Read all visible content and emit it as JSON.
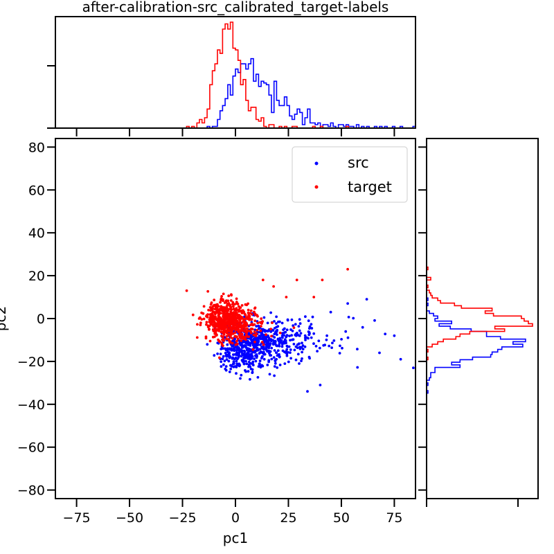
{
  "chart_data": {
    "type": "scatter",
    "title": "after-calibration-src_calibrated_target-labels",
    "xlabel": "pc1",
    "ylabel": "pc2",
    "xlim": [
      -85,
      85
    ],
    "ylim": [
      -84,
      84
    ],
    "xticks": [
      -75,
      -50,
      -25,
      0,
      25,
      50,
      75
    ],
    "yticks": [
      -80,
      -60,
      -40,
      -20,
      0,
      20,
      40,
      60,
      80
    ],
    "legend_position": "top-right",
    "grid": false,
    "marginal_histograms": {
      "top": "pc1 distribution per series (step histogram)",
      "right": "pc2 distribution per series (step histogram)"
    },
    "series": [
      {
        "name": "src",
        "color": "#0000ff",
        "center": [
          12,
          -12
        ],
        "spread": [
          14,
          6
        ],
        "notable_points": [
          [
            84,
            -23
          ],
          [
            78,
            -19
          ],
          [
            75,
            -8
          ],
          [
            68,
            -16
          ],
          [
            62,
            9
          ],
          [
            53,
            7
          ],
          [
            45,
            3
          ],
          [
            34,
            -34
          ],
          [
            40,
            -31
          ]
        ]
      },
      {
        "name": "target",
        "color": "#ff0000",
        "center": [
          -3,
          -1
        ],
        "spread": [
          6,
          5
        ],
        "notable_points": [
          [
            -23,
            13
          ],
          [
            53,
            23
          ],
          [
            41,
            18
          ],
          [
            29,
            18
          ],
          [
            18,
            15
          ],
          [
            13,
            18
          ],
          [
            37,
            10
          ],
          [
            24,
            10
          ]
        ]
      }
    ]
  }
}
